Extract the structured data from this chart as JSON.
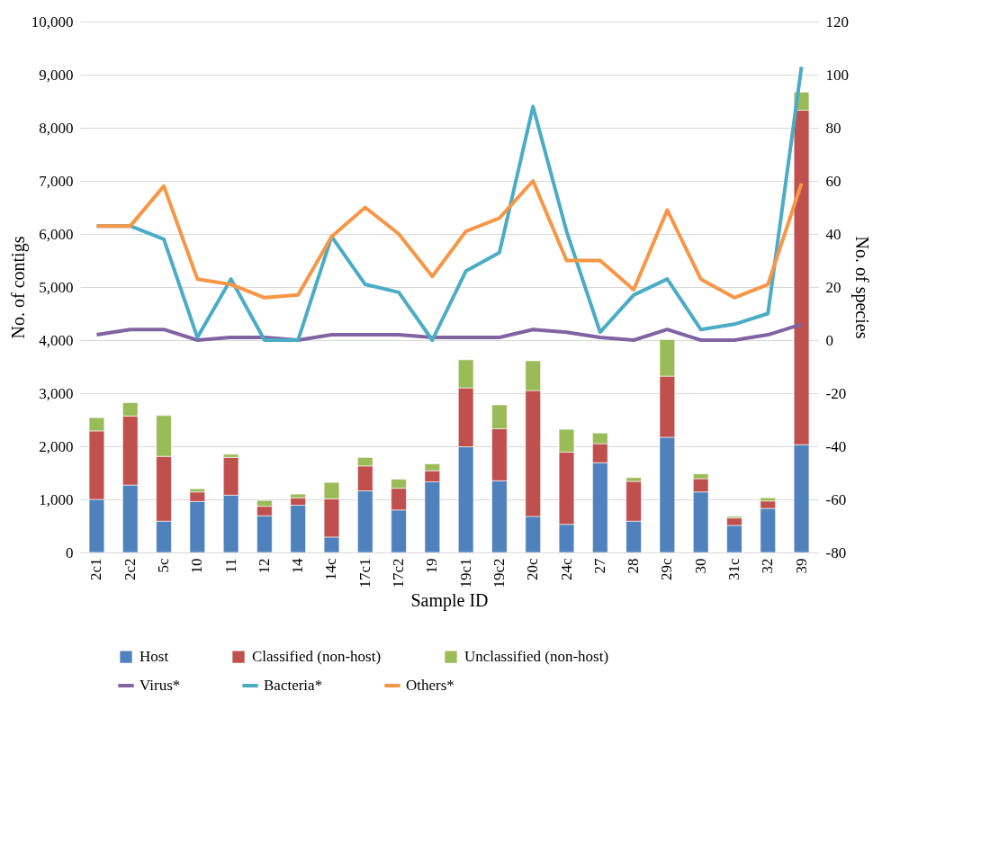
{
  "chart_data": {
    "type": "bar",
    "stacked": true,
    "xlabel": "Sample ID",
    "ylabel": "No. of contigs",
    "y2label": "No. of species",
    "categories": [
      "2c1",
      "2c2",
      "5c",
      "10",
      "11",
      "12",
      "14",
      "14c",
      "17c1",
      "17c2",
      "19",
      "19c1",
      "19c2",
      "20c",
      "24c",
      "27",
      "28",
      "29c",
      "30",
      "31c",
      "32",
      "39"
    ],
    "series": [
      {
        "name": "Host",
        "color": "#4f81bd",
        "values": [
          1000,
          1270,
          590,
          960,
          1080,
          690,
          890,
          290,
          1160,
          800,
          1330,
          1990,
          1350,
          680,
          530,
          1690,
          590,
          2170,
          1140,
          510,
          830,
          2030
        ]
      },
      {
        "name": "Classified (non-host)",
        "color": "#c0504d",
        "values": [
          1290,
          1300,
          1220,
          180,
          710,
          180,
          140,
          720,
          470,
          410,
          210,
          1110,
          980,
          2370,
          1360,
          360,
          750,
          1150,
          250,
          140,
          140,
          6300
        ]
      },
      {
        "name": "Unclassified (non-host)",
        "color": "#9bbb59",
        "values": [
          250,
          250,
          770,
          60,
          60,
          110,
          70,
          310,
          160,
          170,
          130,
          530,
          450,
          560,
          430,
          200,
          70,
          690,
          90,
          30,
          60,
          340
        ]
      },
      {
        "name": "Virus*",
        "color": "#8064a2",
        "type": "line",
        "axis": "y2",
        "values": [
          2,
          4,
          4,
          0,
          1,
          1,
          0,
          2,
          2,
          2,
          1,
          1,
          1,
          4,
          3,
          1,
          0,
          4,
          0,
          0,
          2,
          6
        ]
      },
      {
        "name": "Bacteria*",
        "color": "#4bacc6",
        "type": "line",
        "axis": "y2",
        "values": [
          43,
          43,
          38,
          1,
          23,
          0,
          0,
          39,
          21,
          18,
          0,
          26,
          33,
          88,
          41,
          3,
          17,
          23,
          4,
          6,
          10,
          103
        ]
      },
      {
        "name": "Others*",
        "color": "#f79646",
        "type": "line",
        "axis": "y2",
        "values": [
          43,
          43,
          58,
          23,
          21,
          16,
          17,
          39,
          50,
          40,
          24,
          41,
          46,
          60,
          30,
          30,
          19,
          49,
          23,
          16,
          21,
          59
        ]
      }
    ],
    "ylim": [
      0,
      10000
    ],
    "yticks": [
      0,
      {
        "value": 1000,
        "label": "1,000"
      },
      {
        "value": 2000,
        "label": "2,000"
      },
      {
        "value": 3000,
        "label": "3,000"
      },
      {
        "value": 4000,
        "label": "4,000"
      },
      {
        "value": 5000,
        "label": "5,000"
      },
      {
        "value": 6000,
        "label": "6,000"
      },
      {
        "value": 7000,
        "label": "7,000"
      },
      {
        "value": 8000,
        "label": "8,000"
      },
      {
        "value": 9000,
        "label": "9,000"
      },
      {
        "value": 10000,
        "label": "10,000"
      }
    ],
    "y2lim": [
      -80,
      120
    ],
    "y2ticks": [
      -80,
      -60,
      -40,
      -20,
      0,
      20,
      40,
      60,
      80,
      100,
      120
    ],
    "grid": "y",
    "legend": "bottom",
    "line_style": "solid",
    "marker": "none"
  }
}
